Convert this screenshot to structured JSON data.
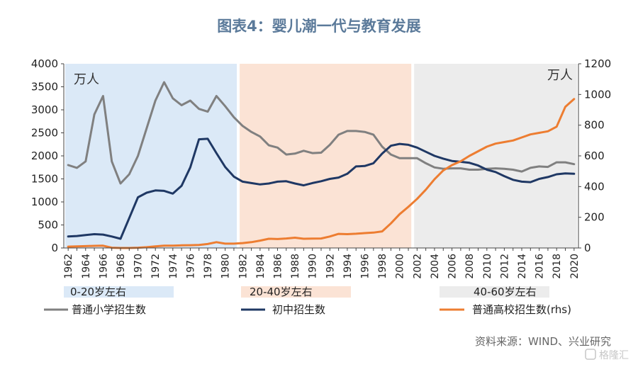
{
  "chart_data": {
    "type": "line",
    "title": "图表4：婴儿潮一代与教育发展",
    "x": [
      1962,
      1963,
      1964,
      1965,
      1966,
      1967,
      1968,
      1969,
      1970,
      1971,
      1972,
      1973,
      1974,
      1975,
      1976,
      1977,
      1978,
      1979,
      1980,
      1981,
      1982,
      1983,
      1984,
      1985,
      1986,
      1987,
      1988,
      1989,
      1990,
      1991,
      1992,
      1993,
      1994,
      1995,
      1996,
      1997,
      1998,
      1999,
      2000,
      2001,
      2002,
      2003,
      2004,
      2005,
      2006,
      2007,
      2008,
      2009,
      2010,
      2011,
      2012,
      2013,
      2014,
      2015,
      2016,
      2017,
      2018,
      2019,
      2020
    ],
    "x_tick_labels": [
      "1962",
      "1964",
      "1966",
      "1968",
      "1970",
      "1972",
      "1974",
      "1976",
      "1978",
      "1980",
      "1982",
      "1984",
      "1986",
      "1988",
      "1990",
      "1992",
      "1994",
      "1996",
      "1998",
      "2000",
      "2002",
      "2004",
      "2006",
      "2008",
      "2010",
      "2012",
      "2014",
      "2016",
      "2018",
      "2020"
    ],
    "left_axis": {
      "unit": "万人",
      "ylim": [
        0,
        4000
      ],
      "ticks": [
        "0",
        "500",
        "1000",
        "1500",
        "2000",
        "2500",
        "3000",
        "3500",
        "4000"
      ]
    },
    "right_axis": {
      "unit": "万人",
      "ylim": [
        0,
        1200
      ],
      "ticks": [
        "0",
        "200",
        "400",
        "600",
        "800",
        "1000",
        "1200"
      ]
    },
    "bands": [
      {
        "label": "0-20岁左右",
        "from": 1962,
        "to": 1981,
        "color": "#dbe9f7"
      },
      {
        "label": "20-40岁左右",
        "from": 1982,
        "to": 2001,
        "color": "#fbe3d5"
      },
      {
        "label": "40-60岁左右",
        "from": 2002,
        "to": 2020,
        "color": "#ececec"
      }
    ],
    "series": [
      {
        "name": "普通小学招生数",
        "axis": "left",
        "color": "#808080",
        "values": [
          1800,
          1740,
          1880,
          2900,
          3300,
          1880,
          1400,
          1600,
          2000,
          2600,
          3200,
          3600,
          3250,
          3100,
          3200,
          3020,
          2960,
          3300,
          3080,
          2840,
          2650,
          2520,
          2420,
          2230,
          2180,
          2030,
          2050,
          2110,
          2060,
          2070,
          2240,
          2460,
          2540,
          2540,
          2520,
          2460,
          2200,
          2030,
          1950,
          1950,
          1950,
          1840,
          1750,
          1720,
          1730,
          1730,
          1700,
          1700,
          1720,
          1730,
          1720,
          1700,
          1660,
          1740,
          1770,
          1760,
          1860,
          1860,
          1820
        ]
      },
      {
        "name": "初中招生数",
        "axis": "left",
        "color": "#1f3864",
        "values": [
          250,
          260,
          280,
          300,
          290,
          250,
          200,
          650,
          1100,
          1200,
          1250,
          1240,
          1180,
          1350,
          1750,
          2360,
          2370,
          2060,
          1760,
          1550,
          1440,
          1410,
          1380,
          1400,
          1440,
          1450,
          1400,
          1360,
          1410,
          1450,
          1500,
          1530,
          1610,
          1770,
          1780,
          1840,
          2050,
          2220,
          2260,
          2240,
          2180,
          2090,
          2000,
          1940,
          1890,
          1870,
          1850,
          1790,
          1700,
          1650,
          1560,
          1480,
          1440,
          1430,
          1500,
          1540,
          1600,
          1620,
          1610
        ]
      },
      {
        "name": "普通高校招生数(rhs)",
        "axis": "right",
        "color": "#ed7d31",
        "values": [
          9,
          10,
          12,
          14,
          15,
          2,
          0,
          0,
          2,
          5,
          10,
          15,
          15,
          17,
          18,
          20,
          26,
          38,
          28,
          28,
          32,
          38,
          48,
          60,
          58,
          62,
          67,
          60,
          61,
          62,
          75,
          92,
          90,
          93,
          97,
          100,
          108,
          160,
          220,
          268,
          320,
          380,
          448,
          505,
          540,
          565,
          600,
          630,
          660,
          680,
          690,
          700,
          720,
          740,
          750,
          760,
          790,
          920,
          970
        ]
      }
    ],
    "legend": [
      "0-20岁左右",
      "20-40岁左右",
      "40-60岁左右",
      "普通小学招生数",
      "初中招生数",
      "普通高校招生数(rhs)"
    ],
    "legend_placement": "bottom",
    "grid": false
  },
  "source": "资料来源：WIND、兴业研究",
  "watermark": "格隆汇"
}
